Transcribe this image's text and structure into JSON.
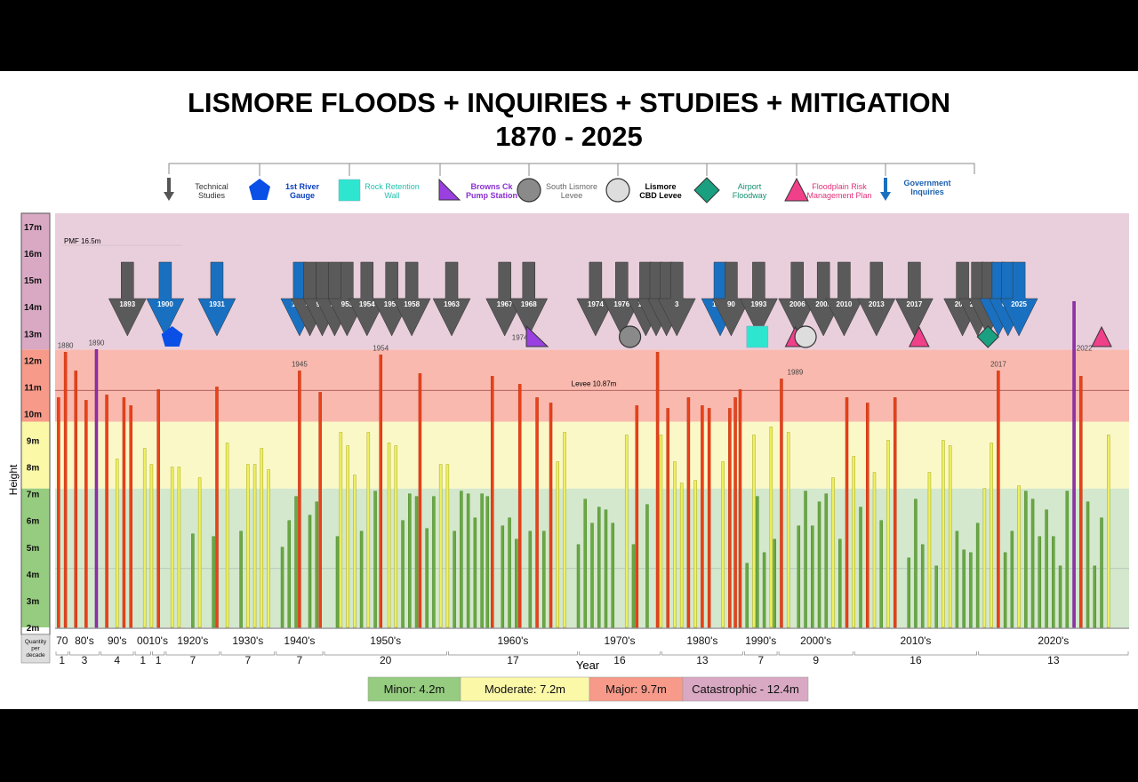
{
  "header": {
    "title_line1": "LISMORE FLOODS + INQUIRIES + STUDIES + MITIGATION",
    "title_line2": "1870 - 2025"
  },
  "legend": [
    {
      "label_lines": [
        "Technical",
        "Studies"
      ],
      "shape": "down-arrow-icon",
      "color": "#555555",
      "text_color": "#333333"
    },
    {
      "label_lines": [
        "1st River",
        "Gauge"
      ],
      "shape": "pentagon-icon",
      "color": "#0a4fe6",
      "text_color": "#0a3fc0"
    },
    {
      "label_lines": [
        "Rock Retention",
        "Wall"
      ],
      "shape": "square-icon",
      "color": "#2ee6d0",
      "text_color": "#20c0b0"
    },
    {
      "label_lines": [
        "Browns Ck",
        "Pump Station"
      ],
      "shape": "triangle-icon",
      "color": "#9a3fe0",
      "text_color": "#8a2fd0"
    },
    {
      "label_lines": [
        "South Lismore",
        "Levee"
      ],
      "shape": "circle-icon",
      "color": "#8a8a8a",
      "text_color": "#666666"
    },
    {
      "label_lines": [
        "Lismore",
        "CBD Levee"
      ],
      "shape": "circle-icon",
      "color": "#dddddd",
      "text_color": "#000000"
    },
    {
      "label_lines": [
        "Airport",
        "Floodway"
      ],
      "shape": "diamond-icon",
      "color": "#1aa080",
      "text_color": "#139070"
    },
    {
      "label_lines": [
        "Floodplain Risk",
        "Management Plan"
      ],
      "shape": "triangle-icon",
      "color": "#f0408a",
      "text_color": "#e0307a"
    },
    {
      "label_lines": [
        "Government",
        "Inquiries"
      ],
      "shape": "down-arrow-icon",
      "color": "#1a70c0",
      "text_color": "#1a60b0"
    }
  ],
  "chart_data": {
    "type": "bar",
    "ylabel": "Height",
    "xlabel": "Year",
    "ylim": [
      2,
      17.5
    ],
    "xlim": [
      1870,
      2026
    ],
    "y_ticks": [
      "2m",
      "3m",
      "4m",
      "5m",
      "6m",
      "7m",
      "8m",
      "9m",
      "10m",
      "11m",
      "12m",
      "13m",
      "14m",
      "15m",
      "16m",
      "17m"
    ],
    "bands": [
      {
        "name": "Minor: 4.2m",
        "from": 2,
        "to": 7.2,
        "color": "#d3e8cc"
      },
      {
        "name": "Moderate: 7.2m",
        "from": 7.2,
        "to": 9.7,
        "color": "#fbf8c8"
      },
      {
        "name": "Major: 9.7m",
        "from": 9.7,
        "to": 12.4,
        "color": "#f9b9ae"
      },
      {
        "name": "Catastrophic - 12.4m",
        "from": 12.4,
        "to": 17.5,
        "color": "#e9cfdc"
      }
    ],
    "band_colors_strong": [
      "#96cc80",
      "#fbf8a8",
      "#f79a8a",
      "#d9a9c4"
    ],
    "reference_lines": [
      {
        "label": "PMF 16.5m",
        "y": 16.5
      },
      {
        "label": "Levee 10.87m",
        "y": 10.87
      }
    ],
    "floods": [
      {
        "year": 1870.5,
        "height": 10.6
      },
      {
        "year": 1871.5,
        "height": 12.3
      },
      {
        "year": 1873,
        "height": 11.6
      },
      {
        "year": 1874.5,
        "height": 10.5
      },
      {
        "year": 1876,
        "height": 12.4
      },
      {
        "year": 1877.5,
        "height": 10.7
      },
      {
        "year": 1879,
        "height": 8.3
      },
      {
        "year": 1880,
        "height": 10.6
      },
      {
        "year": 1881,
        "height": 10.3
      },
      {
        "year": 1883,
        "height": 8.7
      },
      {
        "year": 1884,
        "height": 8.1
      },
      {
        "year": 1885,
        "height": 10.9
      },
      {
        "year": 1887,
        "height": 8.0
      },
      {
        "year": 1888,
        "height": 8.0
      },
      {
        "year": 1890,
        "height": 5.5
      },
      {
        "year": 1891,
        "height": 7.6
      },
      {
        "year": 1893,
        "height": 5.4
      },
      {
        "year": 1893.5,
        "height": 11.0
      },
      {
        "year": 1895,
        "height": 8.9
      },
      {
        "year": 1897,
        "height": 5.6
      },
      {
        "year": 1898,
        "height": 8.1
      },
      {
        "year": 1899,
        "height": 8.1
      },
      {
        "year": 1900,
        "height": 8.7
      },
      {
        "year": 1901,
        "height": 7.9
      },
      {
        "year": 1903,
        "height": 5.0
      },
      {
        "year": 1904,
        "height": 6.0
      },
      {
        "year": 1905,
        "height": 6.9
      },
      {
        "year": 1905.5,
        "height": 11.6
      },
      {
        "year": 1907,
        "height": 6.2
      },
      {
        "year": 1908,
        "height": 6.7
      },
      {
        "year": 1908.5,
        "height": 10.8
      },
      {
        "year": 1911,
        "height": 5.4
      },
      {
        "year": 1911.5,
        "height": 9.3
      },
      {
        "year": 1912.5,
        "height": 8.8
      },
      {
        "year": 1913.5,
        "height": 7.7
      },
      {
        "year": 1914.5,
        "height": 5.6
      },
      {
        "year": 1915.5,
        "height": 9.3
      },
      {
        "year": 1916.5,
        "height": 7.1
      },
      {
        "year": 1917.3,
        "height": 12.2
      },
      {
        "year": 1918.5,
        "height": 8.9
      },
      {
        "year": 1919.5,
        "height": 8.8
      },
      {
        "year": 1920.5,
        "height": 6.0
      },
      {
        "year": 1921.5,
        "height": 7.0
      },
      {
        "year": 1922.5,
        "height": 6.9
      },
      {
        "year": 1923,
        "height": 11.5
      },
      {
        "year": 1924,
        "height": 5.7
      },
      {
        "year": 1925,
        "height": 6.9
      },
      {
        "year": 1926,
        "height": 8.1
      },
      {
        "year": 1927,
        "height": 8.1
      },
      {
        "year": 1928,
        "height": 5.6
      },
      {
        "year": 1929,
        "height": 7.1
      },
      {
        "year": 1930,
        "height": 7.0
      },
      {
        "year": 1931,
        "height": 6.1
      },
      {
        "year": 1932,
        "height": 7.0
      },
      {
        "year": 1932.8,
        "height": 6.9
      },
      {
        "year": 1933.5,
        "height": 11.4
      },
      {
        "year": 1935,
        "height": 5.8
      },
      {
        "year": 1936,
        "height": 6.1
      },
      {
        "year": 1937,
        "height": 5.3
      },
      {
        "year": 1937.5,
        "height": 11.1
      },
      {
        "year": 1939,
        "height": 5.6
      },
      {
        "year": 1940,
        "height": 10.6
      },
      {
        "year": 1941,
        "height": 5.6
      },
      {
        "year": 1942,
        "height": 10.4
      },
      {
        "year": 1943,
        "height": 8.2
      },
      {
        "year": 1944,
        "height": 9.3
      },
      {
        "year": 1946,
        "height": 5.1
      },
      {
        "year": 1947,
        "height": 6.8
      },
      {
        "year": 1948,
        "height": 5.9
      },
      {
        "year": 1949,
        "height": 6.5
      },
      {
        "year": 1950,
        "height": 6.4
      },
      {
        "year": 1951,
        "height": 5.9
      },
      {
        "year": 1953,
        "height": 9.2
      },
      {
        "year": 1954,
        "height": 5.1
      },
      {
        "year": 1954.5,
        "height": 10.3
      },
      {
        "year": 1956,
        "height": 6.6
      },
      {
        "year": 1957.5,
        "height": 12.3
      },
      {
        "year": 1958,
        "height": 9.2
      },
      {
        "year": 1959,
        "height": 10.2
      },
      {
        "year": 1960,
        "height": 8.2
      },
      {
        "year": 1961,
        "height": 7.4
      },
      {
        "year": 1962,
        "height": 10.6
      },
      {
        "year": 1963,
        "height": 7.5
      },
      {
        "year": 1964,
        "height": 10.3
      },
      {
        "year": 1965,
        "height": 10.2
      },
      {
        "year": 1967,
        "height": 8.2
      },
      {
        "year": 1968,
        "height": 10.2
      },
      {
        "year": 1968.8,
        "height": 10.6
      },
      {
        "year": 1969.5,
        "height": 10.9
      },
      {
        "year": 1970.5,
        "height": 4.4
      },
      {
        "year": 1971.5,
        "height": 9.2
      },
      {
        "year": 1972,
        "height": 6.9
      },
      {
        "year": 1973,
        "height": 4.8
      },
      {
        "year": 1974,
        "height": 9.5
      },
      {
        "year": 1974.5,
        "height": 5.3
      },
      {
        "year": 1975.5,
        "height": 11.3
      },
      {
        "year": 1976.5,
        "height": 9.3
      },
      {
        "year": 1978,
        "height": 5.8
      },
      {
        "year": 1979,
        "height": 7.1
      },
      {
        "year": 1980,
        "height": 5.8
      },
      {
        "year": 1981,
        "height": 6.7
      },
      {
        "year": 1982,
        "height": 7.0
      },
      {
        "year": 1983,
        "height": 7.6
      },
      {
        "year": 1984,
        "height": 5.3
      },
      {
        "year": 1985,
        "height": 10.6
      },
      {
        "year": 1986,
        "height": 8.4
      },
      {
        "year": 1987,
        "height": 6.5
      },
      {
        "year": 1988,
        "height": 10.4
      },
      {
        "year": 1989,
        "height": 7.8
      },
      {
        "year": 1990,
        "height": 6.0
      },
      {
        "year": 1991,
        "height": 9.0
      },
      {
        "year": 1992,
        "height": 10.6
      },
      {
        "year": 1994,
        "height": 4.6
      },
      {
        "year": 1995,
        "height": 6.8
      },
      {
        "year": 1996,
        "height": 5.1
      },
      {
        "year": 1997,
        "height": 7.8
      },
      {
        "year": 1998,
        "height": 4.3
      },
      {
        "year": 1999,
        "height": 9.0
      },
      {
        "year": 2000,
        "height": 8.8
      },
      {
        "year": 2001,
        "height": 5.6
      },
      {
        "year": 2002,
        "height": 4.9
      },
      {
        "year": 2003,
        "height": 4.8
      },
      {
        "year": 2004,
        "height": 5.9
      },
      {
        "year": 2005,
        "height": 7.2
      },
      {
        "year": 2006,
        "height": 8.9
      },
      {
        "year": 2007,
        "height": 11.6
      },
      {
        "year": 2008,
        "height": 4.8
      },
      {
        "year": 2009,
        "height": 5.6
      },
      {
        "year": 2010,
        "height": 7.3
      },
      {
        "year": 2011,
        "height": 7.1
      },
      {
        "year": 2012,
        "height": 6.8
      },
      {
        "year": 2013,
        "height": 5.4
      },
      {
        "year": 2014,
        "height": 6.4
      },
      {
        "year": 2015,
        "height": 5.4
      },
      {
        "year": 2016,
        "height": 4.3
      },
      {
        "year": 2017,
        "height": 7.1
      },
      {
        "year": 2018,
        "height": 14.2
      },
      {
        "year": 2019,
        "height": 11.4
      },
      {
        "year": 2020,
        "height": 6.7
      },
      {
        "year": 2021,
        "height": 4.3
      },
      {
        "year": 2022,
        "height": 6.1
      },
      {
        "year": 2023,
        "height": 9.2
      }
    ],
    "flood_labels": [
      {
        "text": "1880",
        "year": 1871.5,
        "height": 12.3
      },
      {
        "text": "1890",
        "year": 1876,
        "height": 12.4
      },
      {
        "text": "1945",
        "year": 1905.5,
        "height": 11.6
      },
      {
        "text": "1954",
        "year": 1917.3,
        "height": 12.2
      },
      {
        "text": "1974",
        "year": 1937.5,
        "height": 12.6
      },
      {
        "text": "1989",
        "year": 1977.5,
        "height": 11.3
      },
      {
        "text": "2017",
        "year": 2007,
        "height": 11.6
      },
      {
        "text": "2022",
        "year": 2019.5,
        "height": 12.2
      }
    ],
    "events": [
      {
        "label": "1893",
        "year": 1880.5,
        "type": "tech"
      },
      {
        "label": "1900",
        "year": 1886,
        "type": "gov"
      },
      {
        "label": "1931",
        "year": 1893.5,
        "type": "gov"
      },
      {
        "label": "1945",
        "year": 1905.5,
        "type": "gov"
      },
      {
        "label": "45",
        "year": 1907,
        "type": "tech"
      },
      {
        "label": "950",
        "year": 1908.8,
        "type": "tech"
      },
      {
        "label": "52",
        "year": 1910.6,
        "type": "tech"
      },
      {
        "label": "953",
        "year": 1912.4,
        "type": "tech"
      },
      {
        "label": "1954",
        "year": 1915.3,
        "type": "tech"
      },
      {
        "label": "1955",
        "year": 1918.9,
        "type": "tech"
      },
      {
        "label": "1958",
        "year": 1921.8,
        "type": "tech"
      },
      {
        "label": "1963",
        "year": 1927.6,
        "type": "tech"
      },
      {
        "label": "1967",
        "year": 1935.3,
        "type": "tech"
      },
      {
        "label": "1968",
        "year": 1938.8,
        "type": "tech"
      },
      {
        "label": "1974",
        "year": 1948.5,
        "type": "tech"
      },
      {
        "label": "1976",
        "year": 1952.3,
        "type": "tech"
      },
      {
        "label": "1981",
        "year": 1955.8,
        "type": "tech"
      },
      {
        "label": "2",
        "year": 1957.3,
        "type": "tech"
      },
      {
        "label": "2",
        "year": 1958.8,
        "type": "tech"
      },
      {
        "label": "3",
        "year": 1960.3,
        "type": "tech"
      },
      {
        "label": "1989",
        "year": 1966.6,
        "type": "gov"
      },
      {
        "label": "90",
        "year": 1968.2,
        "type": "tech"
      },
      {
        "label": "1993",
        "year": 1972.2,
        "type": "tech"
      },
      {
        "label": "2006",
        "year": 1977.8,
        "type": "tech"
      },
      {
        "label": "2009",
        "year": 1981.6,
        "type": "tech"
      },
      {
        "label": "2010",
        "year": 1984.6,
        "type": "tech"
      },
      {
        "label": "2013",
        "year": 1989.3,
        "type": "tech"
      },
      {
        "label": "2017",
        "year": 1994.8,
        "type": "tech"
      },
      {
        "label": "2021",
        "year": 2001.8,
        "type": "tech"
      },
      {
        "label": "2022",
        "year": 2004,
        "type": "tech"
      },
      {
        "label": "",
        "year": 2005.5,
        "type": "tech"
      },
      {
        "label": "",
        "year": 2007,
        "type": "gov"
      },
      {
        "label": "024",
        "year": 2008.4,
        "type": "gov"
      },
      {
        "label": "2025",
        "year": 2010,
        "type": "gov"
      }
    ],
    "mitigation": [
      {
        "shape": "pentagon",
        "year": 1887,
        "color": "#0a4fe6"
      },
      {
        "shape": "triangle",
        "year": 1940,
        "color": "#9a3fe0"
      },
      {
        "shape": "circle",
        "year": 1953.5,
        "color": "#8a8a8a"
      },
      {
        "shape": "square",
        "year": 1972,
        "color": "#2ee6d0"
      },
      {
        "shape": "triangle-pink",
        "year": 1977.5,
        "color": "#f0408a"
      },
      {
        "shape": "circle",
        "year": 1979,
        "color": "#dddddd"
      },
      {
        "shape": "triangle-pink",
        "year": 1995.5,
        "color": "#f0408a"
      },
      {
        "shape": "diamond",
        "year": 2005.5,
        "color": "#1aa080"
      },
      {
        "shape": "triangle-pink",
        "year": 2022,
        "color": "#f0408a"
      }
    ],
    "decades": [
      {
        "label": "70",
        "count": "1",
        "from": 1870,
        "to": 1872
      },
      {
        "label": "80's",
        "count": "3",
        "from": 1872,
        "to": 1876.5
      },
      {
        "label": "90's",
        "count": "4",
        "from": 1876.5,
        "to": 1881.5
      },
      {
        "label": "00",
        "count": "1",
        "from": 1881.5,
        "to": 1884
      },
      {
        "label": "10's",
        "count": "1",
        "from": 1884,
        "to": 1886
      },
      {
        "label": "1920's",
        "count": "7",
        "from": 1886,
        "to": 1894
      },
      {
        "label": "1930's",
        "count": "7",
        "from": 1894,
        "to": 1902
      },
      {
        "label": "1940's",
        "count": "7",
        "from": 1902,
        "to": 1909
      },
      {
        "label": "1950's",
        "count": "20",
        "from": 1909,
        "to": 1927
      },
      {
        "label": "1960's",
        "count": "17",
        "from": 1927,
        "to": 1946
      },
      {
        "label": "1970's",
        "count": "16",
        "from": 1946,
        "to": 1958
      },
      {
        "label": "1980's",
        "count": "13",
        "from": 1958,
        "to": 1970
      },
      {
        "label": "1990's",
        "count": "7",
        "from": 1970,
        "to": 1975
      },
      {
        "label": "2000's",
        "count": "9",
        "from": 1975,
        "to": 1986
      },
      {
        "label": "2010's",
        "count": "16",
        "from": 1986,
        "to": 2004
      },
      {
        "label": "2020's",
        "count": "13",
        "from": 2004,
        "to": 2026
      }
    ],
    "quantity_label_lines": [
      "Quantity",
      "per",
      "decade"
    ]
  }
}
